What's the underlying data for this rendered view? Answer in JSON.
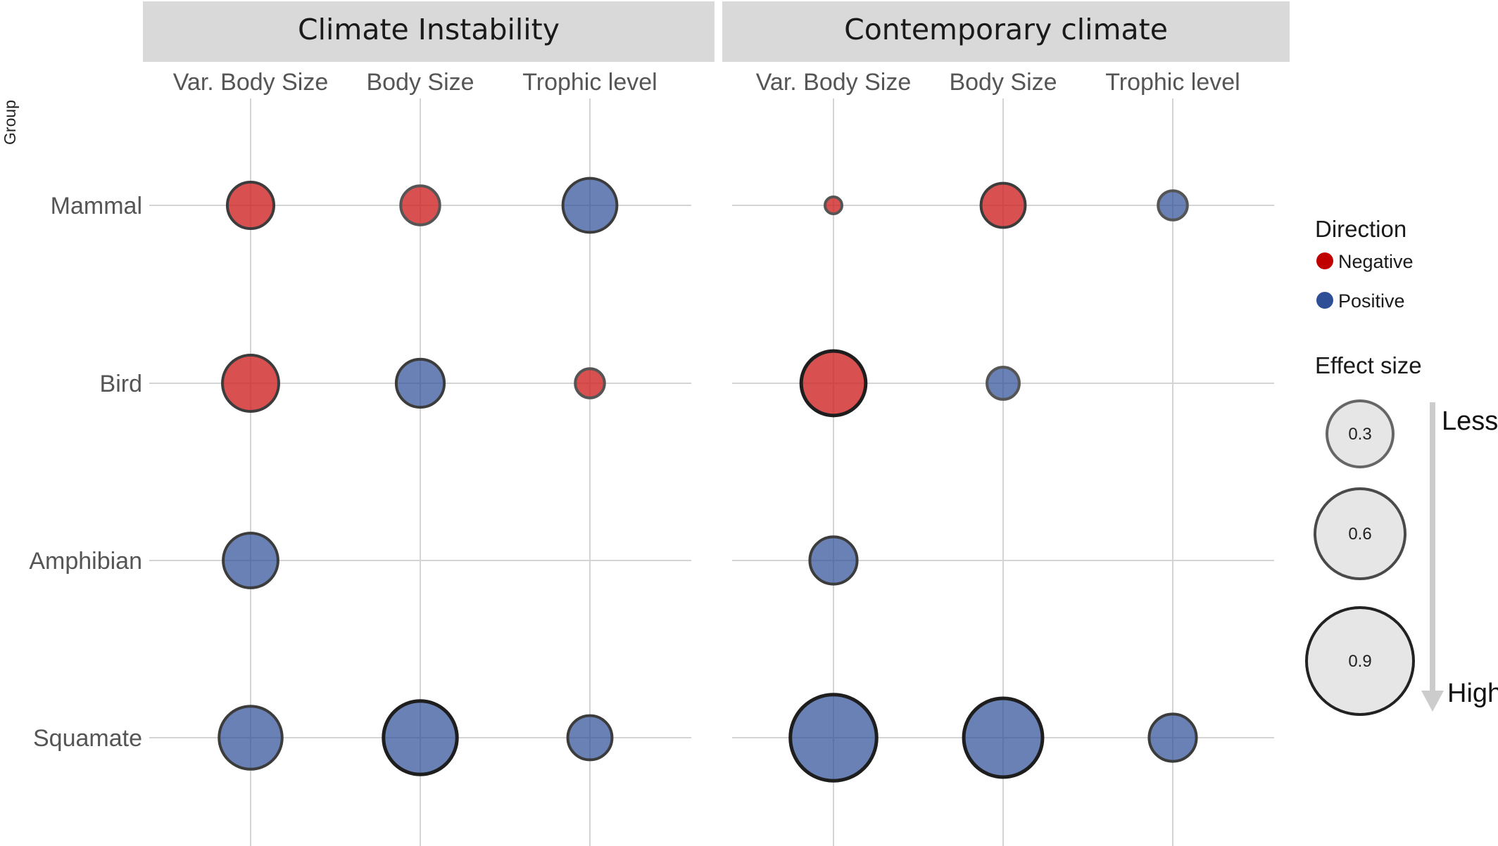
{
  "chart_data": {
    "type": "scatter",
    "y_axis_title": "Group",
    "panels": [
      {
        "name": "Climate Instability",
        "columns": [
          "Var. Body Size",
          "Body Size",
          "Trophic level"
        ],
        "points": [
          {
            "group": "Mammal",
            "trait": "Var. Body Size",
            "direction": "Negative",
            "effect": 0.62
          },
          {
            "group": "Mammal",
            "trait": "Body Size",
            "direction": "Negative",
            "effect": 0.52
          },
          {
            "group": "Mammal",
            "trait": "Trophic level",
            "direction": "Positive",
            "effect": 0.72
          },
          {
            "group": "Bird",
            "trait": "Var. Body Size",
            "direction": "Negative",
            "effect": 0.75
          },
          {
            "group": "Bird",
            "trait": "Body Size",
            "direction": "Positive",
            "effect": 0.64
          },
          {
            "group": "Bird",
            "trait": "Trophic level",
            "direction": "Negative",
            "effect": 0.39
          },
          {
            "group": "Amphibian",
            "trait": "Var. Body Size",
            "direction": "Positive",
            "effect": 0.73
          },
          {
            "group": "Squamate",
            "trait": "Var. Body Size",
            "direction": "Positive",
            "effect": 0.84
          },
          {
            "group": "Squamate",
            "trait": "Body Size",
            "direction": "Positive",
            "effect": 0.98
          },
          {
            "group": "Squamate",
            "trait": "Trophic level",
            "direction": "Positive",
            "effect": 0.59
          }
        ]
      },
      {
        "name": "Contemporary climate",
        "columns": [
          "Var. Body Size",
          "Body Size",
          "Trophic level"
        ],
        "points": [
          {
            "group": "Mammal",
            "trait": "Var. Body Size",
            "direction": "Negative",
            "effect": 0.18
          },
          {
            "group": "Mammal",
            "trait": "Body Size",
            "direction": "Negative",
            "effect": 0.59
          },
          {
            "group": "Mammal",
            "trait": "Trophic level",
            "direction": "Positive",
            "effect": 0.39
          },
          {
            "group": "Bird",
            "trait": "Var. Body Size",
            "direction": "Negative",
            "effect": 0.86
          },
          {
            "group": "Bird",
            "trait": "Body Size",
            "direction": "Positive",
            "effect": 0.43
          },
          {
            "group": "Amphibian",
            "trait": "Var. Body Size",
            "direction": "Positive",
            "effect": 0.63
          },
          {
            "group": "Squamate",
            "trait": "Var. Body Size",
            "direction": "Positive",
            "effect": 1.15
          },
          {
            "group": "Squamate",
            "trait": "Body Size",
            "direction": "Positive",
            "effect": 1.05
          },
          {
            "group": "Squamate",
            "trait": "Trophic level",
            "direction": "Positive",
            "effect": 0.63
          }
        ]
      }
    ],
    "rows": [
      "Mammal",
      "Bird",
      "Amphibian",
      "Squamate"
    ],
    "legend": {
      "direction_title": "Direction",
      "direction_items": [
        {
          "label": "Negative",
          "color": "#c00000"
        },
        {
          "label": "Positive",
          "color": "#2e4f95"
        }
      ],
      "size_title": "Effect size",
      "size_items": [
        {
          "label": "0.3",
          "value": 0.3
        },
        {
          "label": "0.6",
          "value": 0.6
        },
        {
          "label": "0.9",
          "value": 0.9
        }
      ],
      "arrow_top_label": "Less",
      "arrow_bottom_label": "High"
    },
    "colors": {
      "Negative": "#d12a2a",
      "Positive": "#2f5099",
      "strip": "#d9d9d9",
      "grid": "#d4d4d4",
      "legend_fill": "#e6e6e6",
      "arrow": "#cccccc"
    }
  }
}
